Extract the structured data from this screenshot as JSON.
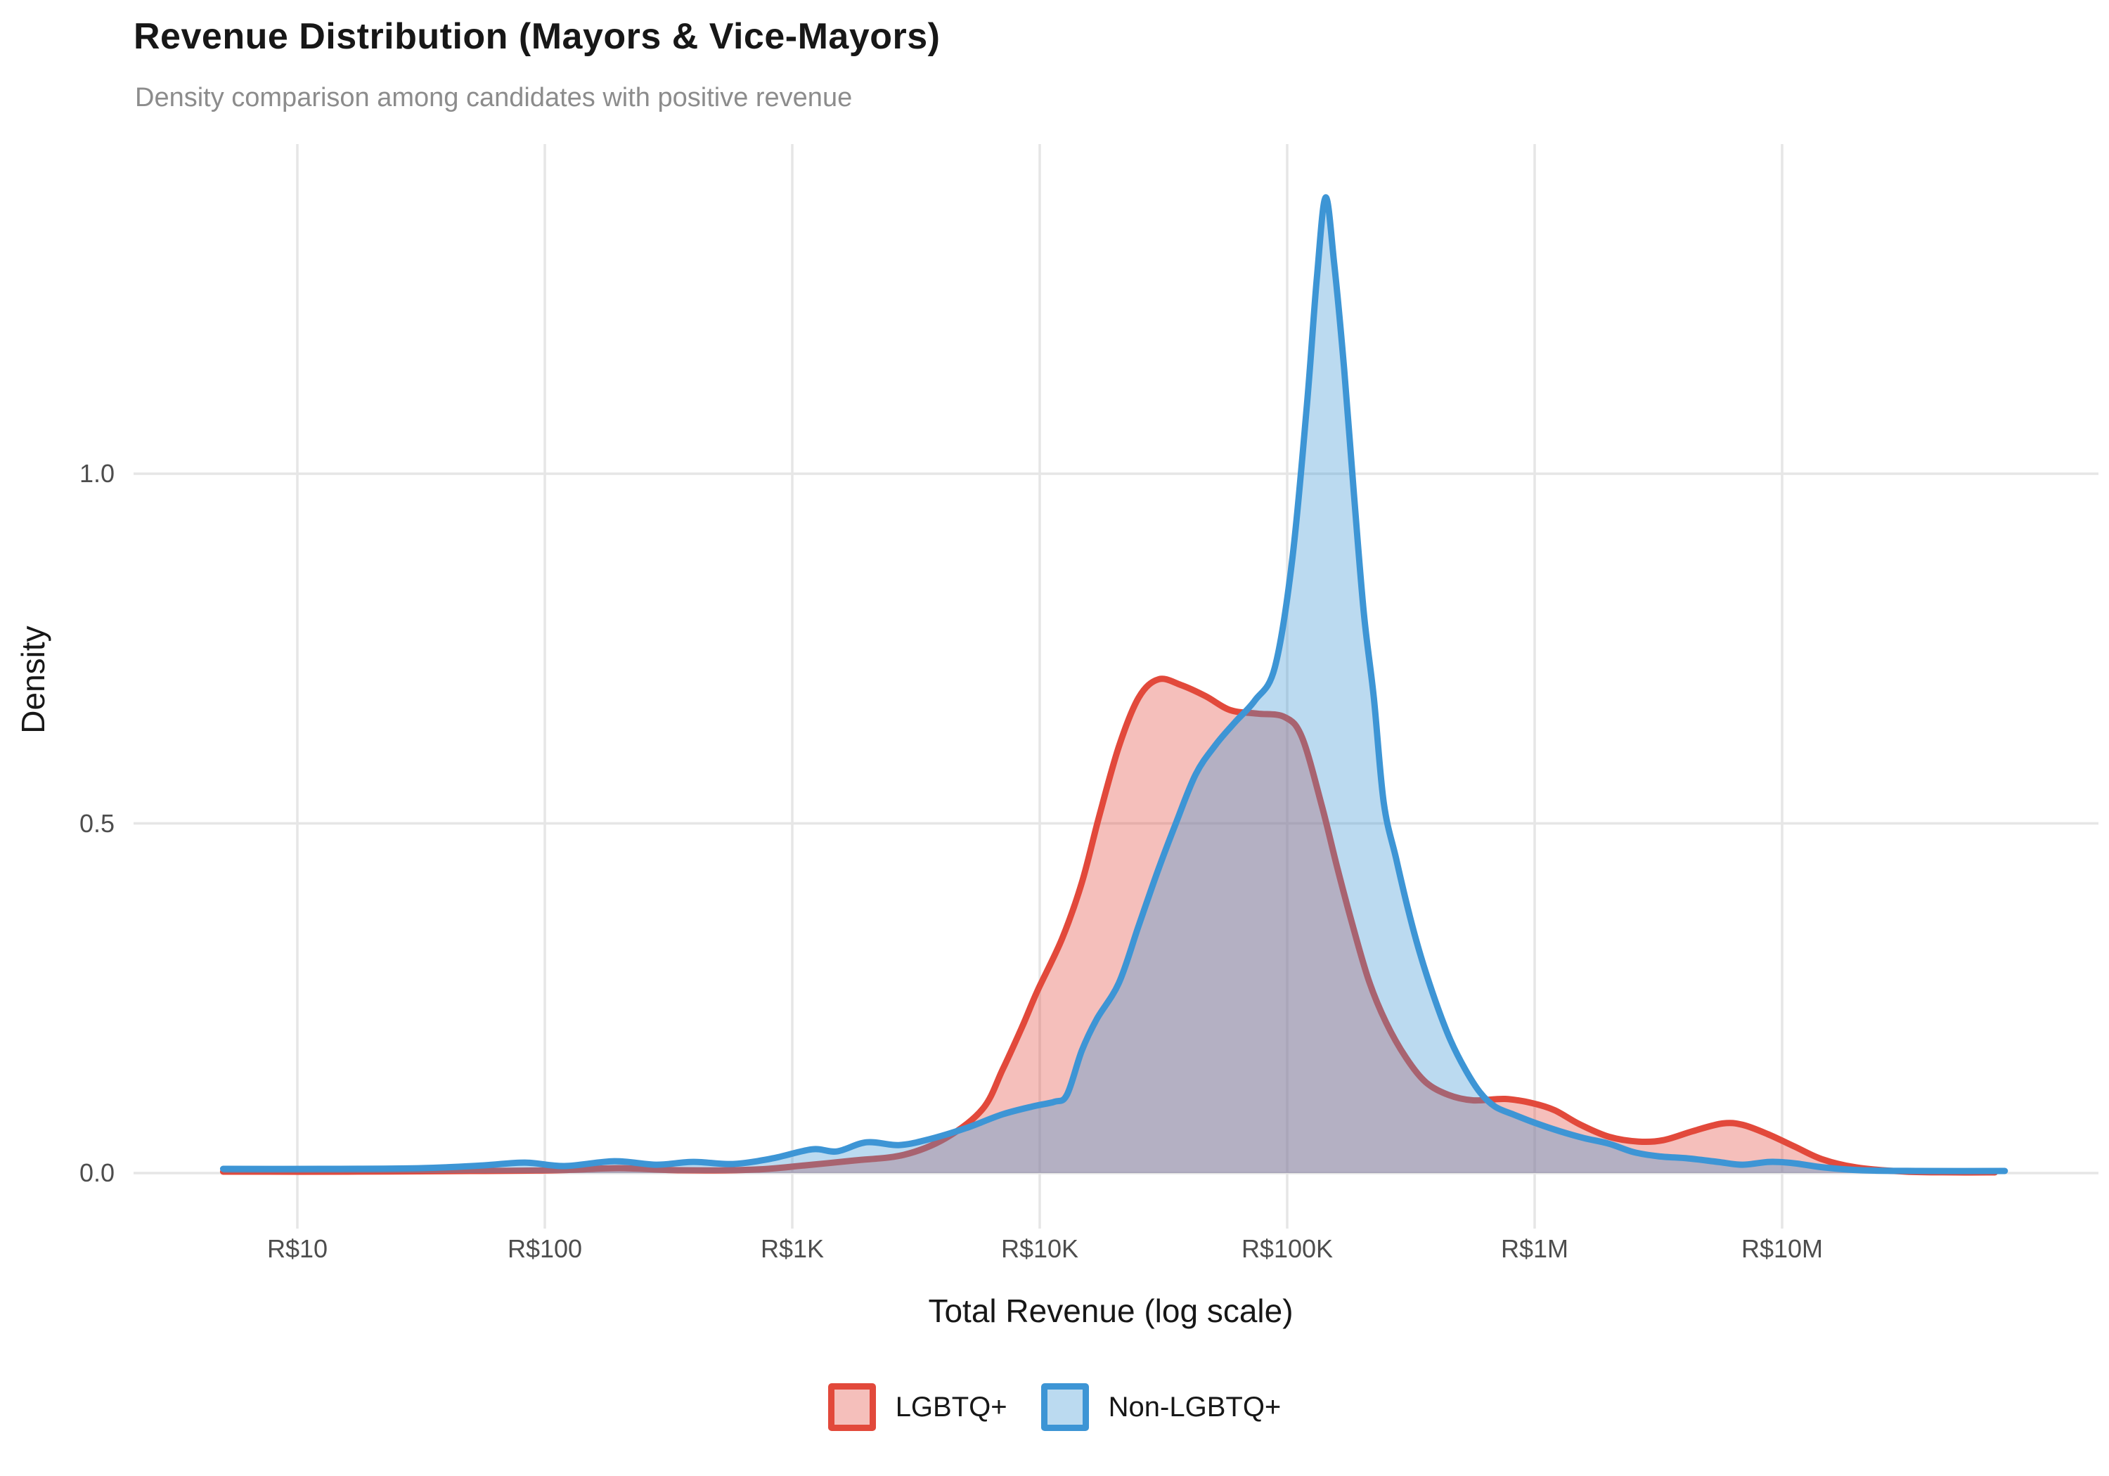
{
  "header": {
    "title": "Revenue Distribution (Mayors & Vice-Mayors)",
    "subtitle": "Density comparison among candidates with positive revenue"
  },
  "chart_data": {
    "type": "area",
    "subtype": "density",
    "title": "Revenue Distribution (Mayors & Vice-Mayors)",
    "subtitle": "Density comparison among candidates with positive revenue",
    "xlabel": "Total Revenue (log scale)",
    "ylabel": "Density",
    "x_scale": "log10",
    "x_domain_log10": [
      0.7,
      7.9
    ],
    "ylim": [
      0,
      1.45
    ],
    "grid": "major",
    "legend_position": "bottom",
    "gridline_color": "#E6E6E6",
    "x_ticks": [
      {
        "label": "R$10",
        "log10": 1
      },
      {
        "label": "R$100",
        "log10": 2
      },
      {
        "label": "R$1K",
        "log10": 3
      },
      {
        "label": "R$10K",
        "log10": 4
      },
      {
        "label": "R$100K",
        "log10": 5
      },
      {
        "label": "R$1M",
        "log10": 6
      },
      {
        "label": "R$10M",
        "log10": 7
      }
    ],
    "y_ticks": [
      {
        "label": "0.0",
        "value": 0.0
      },
      {
        "label": "0.5",
        "value": 0.5
      },
      {
        "label": "1.0",
        "value": 1.0
      }
    ],
    "series": [
      {
        "name": "LGBTQ+",
        "color": "#E2493B",
        "fill_opacity": 0.35,
        "peak": {
          "x_log10": 4.48,
          "density": 0.706
        },
        "points": [
          [
            0.7,
            0.002
          ],
          [
            1.2,
            0.002
          ],
          [
            1.7,
            0.003
          ],
          [
            2.05,
            0.004
          ],
          [
            2.3,
            0.007
          ],
          [
            2.55,
            0.004
          ],
          [
            2.85,
            0.005
          ],
          [
            3.05,
            0.011
          ],
          [
            3.25,
            0.018
          ],
          [
            3.45,
            0.026
          ],
          [
            3.62,
            0.05
          ],
          [
            3.77,
            0.092
          ],
          [
            3.85,
            0.148
          ],
          [
            3.93,
            0.21
          ],
          [
            3.99,
            0.26
          ],
          [
            4.09,
            0.335
          ],
          [
            4.17,
            0.415
          ],
          [
            4.24,
            0.51
          ],
          [
            4.32,
            0.61
          ],
          [
            4.4,
            0.68
          ],
          [
            4.48,
            0.706
          ],
          [
            4.57,
            0.698
          ],
          [
            4.67,
            0.682
          ],
          [
            4.77,
            0.662
          ],
          [
            4.88,
            0.657
          ],
          [
            4.99,
            0.652
          ],
          [
            5.06,
            0.623
          ],
          [
            5.14,
            0.525
          ],
          [
            5.2,
            0.44
          ],
          [
            5.26,
            0.36
          ],
          [
            5.33,
            0.275
          ],
          [
            5.4,
            0.215
          ],
          [
            5.48,
            0.165
          ],
          [
            5.56,
            0.13
          ],
          [
            5.65,
            0.112
          ],
          [
            5.75,
            0.104
          ],
          [
            5.88,
            0.106
          ],
          [
            5.99,
            0.1
          ],
          [
            6.08,
            0.09
          ],
          [
            6.18,
            0.07
          ],
          [
            6.3,
            0.052
          ],
          [
            6.42,
            0.045
          ],
          [
            6.52,
            0.047
          ],
          [
            6.64,
            0.06
          ],
          [
            6.76,
            0.071
          ],
          [
            6.84,
            0.069
          ],
          [
            6.94,
            0.056
          ],
          [
            7.05,
            0.038
          ],
          [
            7.16,
            0.02
          ],
          [
            7.3,
            0.008
          ],
          [
            7.5,
            0.002
          ],
          [
            7.7,
            0.001
          ],
          [
            7.86,
            0.001
          ]
        ]
      },
      {
        "name": "Non-LGBTQ+",
        "color": "#3D95D5",
        "fill_opacity": 0.35,
        "peak": {
          "x_log10": 5.155,
          "density": 1.395
        },
        "points": [
          [
            0.7,
            0.006
          ],
          [
            1.1,
            0.006
          ],
          [
            1.5,
            0.007
          ],
          [
            1.75,
            0.011
          ],
          [
            1.92,
            0.015
          ],
          [
            2.08,
            0.01
          ],
          [
            2.28,
            0.017
          ],
          [
            2.45,
            0.012
          ],
          [
            2.6,
            0.016
          ],
          [
            2.76,
            0.013
          ],
          [
            2.92,
            0.021
          ],
          [
            3.08,
            0.034
          ],
          [
            3.18,
            0.031
          ],
          [
            3.3,
            0.044
          ],
          [
            3.43,
            0.04
          ],
          [
            3.55,
            0.048
          ],
          [
            3.7,
            0.064
          ],
          [
            3.85,
            0.084
          ],
          [
            3.98,
            0.096
          ],
          [
            4.06,
            0.102
          ],
          [
            4.11,
            0.112
          ],
          [
            4.17,
            0.175
          ],
          [
            4.23,
            0.22
          ],
          [
            4.32,
            0.272
          ],
          [
            4.4,
            0.354
          ],
          [
            4.48,
            0.435
          ],
          [
            4.55,
            0.5
          ],
          [
            4.63,
            0.57
          ],
          [
            4.71,
            0.612
          ],
          [
            4.79,
            0.645
          ],
          [
            4.87,
            0.676
          ],
          [
            4.95,
            0.723
          ],
          [
            5.02,
            0.876
          ],
          [
            5.08,
            1.1
          ],
          [
            5.12,
            1.28
          ],
          [
            5.155,
            1.395
          ],
          [
            5.19,
            1.3
          ],
          [
            5.23,
            1.15
          ],
          [
            5.27,
            0.97
          ],
          [
            5.31,
            0.8
          ],
          [
            5.35,
            0.68
          ],
          [
            5.39,
            0.53
          ],
          [
            5.44,
            0.45
          ],
          [
            5.49,
            0.375
          ],
          [
            5.54,
            0.31
          ],
          [
            5.6,
            0.245
          ],
          [
            5.66,
            0.19
          ],
          [
            5.72,
            0.148
          ],
          [
            5.78,
            0.115
          ],
          [
            5.84,
            0.095
          ],
          [
            5.92,
            0.083
          ],
          [
            6.0,
            0.072
          ],
          [
            6.1,
            0.06
          ],
          [
            6.2,
            0.05
          ],
          [
            6.3,
            0.042
          ],
          [
            6.4,
            0.03
          ],
          [
            6.5,
            0.024
          ],
          [
            6.62,
            0.021
          ],
          [
            6.74,
            0.016
          ],
          [
            6.84,
            0.012
          ],
          [
            6.95,
            0.016
          ],
          [
            7.05,
            0.014
          ],
          [
            7.17,
            0.008
          ],
          [
            7.32,
            0.004
          ],
          [
            7.55,
            0.003
          ],
          [
            7.9,
            0.003
          ]
        ]
      }
    ]
  },
  "legend": {
    "items": [
      {
        "label": "LGBTQ+",
        "color": "#E2493B"
      },
      {
        "label": "Non-LGBTQ+",
        "color": "#3D95D5"
      }
    ]
  }
}
